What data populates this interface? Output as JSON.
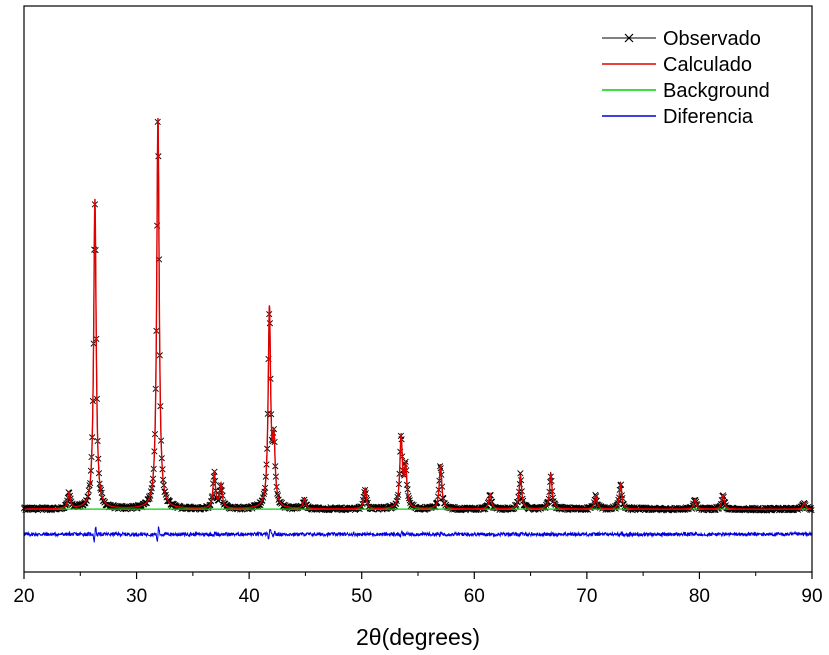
{
  "chart_data": {
    "type": "line",
    "title": "",
    "xlabel": "2θ(degrees)",
    "ylabel": "",
    "xlim": [
      20,
      90
    ],
    "ylim": [
      -700,
      5600
    ],
    "x_ticks": [
      "20",
      "30",
      "40",
      "50",
      "60",
      "70",
      "80",
      "90"
    ],
    "grid": false,
    "legend_position": "top-right",
    "series": [
      {
        "name": "Observado",
        "color": "#000000",
        "marker": "x"
      },
      {
        "name": "Calculado",
        "color": "#e00000"
      },
      {
        "name": "Background",
        "color": "#00d000"
      },
      {
        "name": "Diferencia",
        "color": "#0000e0"
      }
    ],
    "background_level": 0,
    "difference_offset": -280,
    "peaks": [
      {
        "x": 24.0,
        "y": 180
      },
      {
        "x": 26.3,
        "y": 3450
      },
      {
        "x": 31.9,
        "y": 4350
      },
      {
        "x": 36.9,
        "y": 390
      },
      {
        "x": 37.5,
        "y": 270
      },
      {
        "x": 41.8,
        "y": 2200
      },
      {
        "x": 42.2,
        "y": 680
      },
      {
        "x": 44.9,
        "y": 110
      },
      {
        "x": 50.3,
        "y": 230
      },
      {
        "x": 53.5,
        "y": 800
      },
      {
        "x": 53.9,
        "y": 450
      },
      {
        "x": 57.0,
        "y": 490
      },
      {
        "x": 61.4,
        "y": 170
      },
      {
        "x": 64.1,
        "y": 370
      },
      {
        "x": 66.8,
        "y": 390
      },
      {
        "x": 70.8,
        "y": 150
      },
      {
        "x": 73.0,
        "y": 280
      },
      {
        "x": 79.6,
        "y": 110
      },
      {
        "x": 82.1,
        "y": 160
      },
      {
        "x": 89.3,
        "y": 70
      }
    ]
  }
}
